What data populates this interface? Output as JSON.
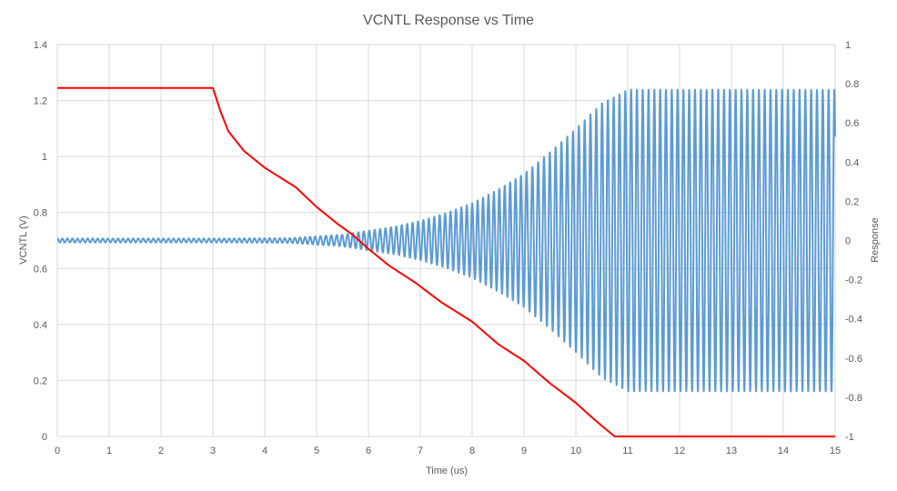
{
  "chart_data": {
    "type": "line",
    "title": "VCNTL Response vs Time",
    "xlabel": "Time (us)",
    "ylabel_left": "VCNTL  (V)",
    "ylabel_right": "Response",
    "xlim": [
      0,
      15
    ],
    "ylim_left": [
      0,
      1.4
    ],
    "ylim_right": [
      -1,
      1
    ],
    "x_ticks": [
      "0",
      "1",
      "2",
      "3",
      "4",
      "5",
      "6",
      "7",
      "8",
      "9",
      "10",
      "11",
      "12",
      "13",
      "14",
      "15"
    ],
    "y_ticks_left": [
      "0",
      "0.2",
      "0.4",
      "0.6",
      "0.8",
      "1",
      "1.2",
      "1.4"
    ],
    "y_ticks_right": [
      "-1",
      "-0.8",
      "-0.6",
      "-0.4",
      "-0.2",
      "0",
      "0.2",
      "0.4",
      "0.6",
      "0.8",
      "1"
    ],
    "grid": true,
    "series": [
      {
        "axis": "left",
        "color": "#ff0000",
        "x": [
          0,
          3,
          3.15,
          3.3,
          3.6,
          4,
          4.6,
          5.0,
          5.4,
          5.7,
          6.0,
          6.4,
          6.9,
          7.4,
          8.0,
          8.5,
          9.0,
          9.5,
          10.0,
          10.3,
          10.55,
          10.75,
          15
        ],
        "values": [
          1.245,
          1.245,
          1.16,
          1.09,
          1.02,
          0.96,
          0.89,
          0.82,
          0.76,
          0.72,
          0.67,
          0.61,
          0.55,
          0.48,
          0.41,
          0.33,
          0.27,
          0.19,
          0.12,
          0.07,
          0.03,
          0.0,
          0.0
        ]
      },
      {
        "axis": "right",
        "color": "#5b9bd5",
        "oscillating": true,
        "envelope": {
          "x": [
            0,
            3,
            4.5,
            5.5,
            6.0,
            6.5,
            7.0,
            7.5,
            8.0,
            8.5,
            9.0,
            9.5,
            10.0,
            10.5,
            10.8,
            11.0,
            15
          ],
          "amplitude": [
            0.01,
            0.01,
            0.012,
            0.03,
            0.05,
            0.07,
            0.1,
            0.14,
            0.19,
            0.26,
            0.34,
            0.45,
            0.57,
            0.7,
            0.74,
            0.77,
            0.77
          ]
        },
        "period_us": [
          0.0975,
          0.1045,
          0.112
        ]
      }
    ]
  }
}
